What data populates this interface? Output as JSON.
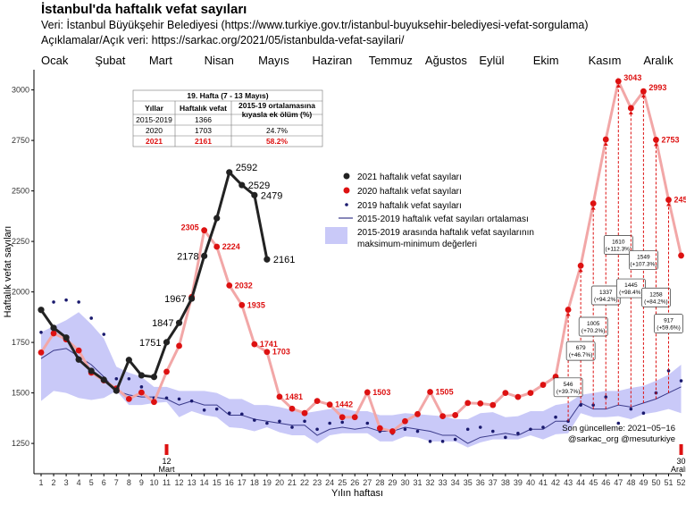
{
  "title": "İstanbul'da haftalık vefat sayıları",
  "subtitle1": "Veri: İstanbul Büyükşehir Belediyesi (https://www.turkiye.gov.tr/istanbul-buyuksehir-belediyesi-vefat-sorgulama)",
  "subtitle2": "Açıklamalar/Açık veri: https://sarkac.org/2021/05/istanbulda-vefat-sayilari/",
  "chart_data": {
    "type": "line",
    "xlabel": "Yılın haftası",
    "ylabel": "Haftalık vefat sayıları",
    "xlim": [
      1,
      52
    ],
    "ylim": [
      1100,
      3100
    ],
    "yticks": [
      1250,
      1500,
      1750,
      2000,
      2250,
      2500,
      2750,
      3000
    ],
    "months": [
      {
        "label": "Ocak",
        "week": 1
      },
      {
        "label": "Şubat",
        "week": 5.3
      },
      {
        "label": "Mart",
        "week": 9.6
      },
      {
        "label": "Nisan",
        "week": 14
      },
      {
        "label": "Mayıs",
        "week": 18.3
      },
      {
        "label": "Haziran",
        "week": 22.6
      },
      {
        "label": "Temmuz",
        "week": 27.1
      },
      {
        "label": "Ağustos",
        "week": 31.6
      },
      {
        "label": "Eylül",
        "week": 35.9
      },
      {
        "label": "Ekim",
        "week": 40.2
      },
      {
        "label": "Kasım",
        "week": 44.6
      },
      {
        "label": "Aralık",
        "week": 49
      }
    ],
    "band_min": [
      1460,
      1510,
      1500,
      1475,
      1465,
      1475,
      1510,
      1440,
      1440,
      1450,
      1455,
      1380,
      1410,
      1390,
      1380,
      1330,
      1325,
      1310,
      1330,
      1305,
      1290,
      1290,
      1250,
      1290,
      1300,
      1300,
      1300,
      1260,
      1260,
      1285,
      1280,
      1260,
      1260,
      1260,
      1230,
      1255,
      1270,
      1270,
      1270,
      1290,
      1270,
      1295,
      1300,
      1400,
      1380,
      1380,
      1385,
      1370,
      1395,
      1405,
      1420,
      1400
    ],
    "band_max": [
      1800,
      1830,
      1860,
      1900,
      1840,
      1770,
      1630,
      1600,
      1580,
      1530,
      1530,
      1510,
      1510,
      1510,
      1500,
      1470,
      1470,
      1440,
      1440,
      1430,
      1415,
      1400,
      1410,
      1420,
      1425,
      1410,
      1410,
      1390,
      1390,
      1400,
      1395,
      1390,
      1385,
      1370,
      1370,
      1400,
      1405,
      1380,
      1385,
      1410,
      1410,
      1440,
      1450,
      1490,
      1500,
      1510,
      1510,
      1525,
      1535,
      1560,
      1590,
      1640
    ],
    "avg_2015_2019": [
      1670,
      1710,
      1720,
      1680,
      1640,
      1580,
      1510,
      1490,
      1480,
      1480,
      1470,
      1440,
      1460,
      1440,
      1440,
      1390,
      1390,
      1370,
      1360,
      1350,
      1340,
      1340,
      1290,
      1320,
      1330,
      1320,
      1330,
      1310,
      1310,
      1330,
      1320,
      1310,
      1290,
      1290,
      1250,
      1280,
      1290,
      1300,
      1290,
      1320,
      1320,
      1360,
      1360,
      1450,
      1420,
      1420,
      1440,
      1430,
      1450,
      1470,
      1500,
      1530
    ],
    "series": [
      {
        "name": "2021 haftalık vefat sayıları",
        "weeks": [
          1,
          2,
          3,
          4,
          5,
          6,
          7,
          8,
          9,
          10,
          11,
          12,
          13,
          14,
          15,
          16,
          17,
          18,
          19
        ],
        "values": [
          1911,
          1822,
          1774,
          1665,
          1609,
          1565,
          1511,
          1663,
          1587,
          1579,
          1751,
          1847,
          1967,
          2178,
          2365,
          2592,
          2529,
          2479,
          2161
        ],
        "labels": {
          "11": "1751",
          "12": "1847",
          "13": "1967",
          "14": "2178",
          "16": "2592",
          "17": "2529",
          "18": "2479",
          "19": "2161"
        }
      },
      {
        "name": "2020 haftalık vefat sayıları",
        "weeks": [
          1,
          2,
          3,
          4,
          5,
          6,
          7,
          8,
          9,
          10,
          11,
          12,
          13,
          14,
          15,
          16,
          17,
          18,
          19,
          20,
          21,
          22,
          23,
          24,
          25,
          26,
          27,
          28,
          29,
          30,
          31,
          32,
          33,
          34,
          35,
          36,
          37,
          38,
          39,
          40,
          41,
          42,
          43,
          44,
          45,
          46,
          47,
          48,
          49,
          50,
          51,
          52
        ],
        "values": [
          1700,
          1795,
          1765,
          1710,
          1600,
          1562,
          1522,
          1470,
          1502,
          1455,
          1605,
          1733,
          1975,
          2305,
          2224,
          2032,
          1935,
          1741,
          1703,
          1481,
          1422,
          1400,
          1460,
          1442,
          1380,
          1380,
          1503,
          1325,
          1310,
          1360,
          1395,
          1505,
          1385,
          1390,
          1450,
          1448,
          1440,
          1500,
          1480,
          1500,
          1540,
          1580,
          1912,
          2130,
          2438,
          2755,
          3043,
          2910,
          2993,
          2753,
          2456,
          2180
        ],
        "labels": {
          "14": "2305",
          "15": "2224",
          "16": "2032",
          "17": "1935",
          "18": "1741",
          "19": "1703",
          "20": "1481",
          "24": "1442",
          "27": "1503",
          "32": "1505",
          "47": "3043",
          "49": "2993",
          "50": "2753",
          "51": "2456"
        }
      },
      {
        "name": "2019 haftalık vefat sayıları",
        "weeks": [
          1,
          2,
          3,
          4,
          5,
          6,
          7,
          8,
          9,
          10,
          11,
          12,
          13,
          14,
          15,
          16,
          17,
          18,
          19,
          20,
          21,
          22,
          23,
          24,
          25,
          26,
          27,
          28,
          29,
          30,
          31,
          32,
          33,
          34,
          35,
          36,
          37,
          38,
          39,
          40,
          41,
          42,
          43,
          44,
          45,
          46,
          47,
          48,
          49,
          50,
          51,
          52
        ],
        "values": [
          1800,
          1950,
          1960,
          1950,
          1870,
          1790,
          1570,
          1570,
          1530,
          1475,
          1475,
          1470,
          1460,
          1415,
          1420,
          1400,
          1395,
          1365,
          1350,
          1360,
          1330,
          1360,
          1320,
          1350,
          1355,
          1375,
          1350,
          1310,
          1300,
          1320,
          1310,
          1260,
          1260,
          1270,
          1320,
          1330,
          1310,
          1280,
          1300,
          1320,
          1330,
          1380,
          1360,
          1440,
          1440,
          1480,
          1350,
          1420,
          1400,
          1500,
          1610,
          1560
        ]
      },
      {
        "name": "2015-2019 haftalık vefat sayıları ortalaması"
      },
      {
        "name": "2015-2019 arasında haftalık vefat sayılarının maksimum-minimum değerleri"
      }
    ],
    "excess_annotations": [
      {
        "week": 43,
        "value": 546,
        "pct": "(+39.7%)",
        "box_y": 1530
      },
      {
        "week": 44,
        "value": 679,
        "pct": "(+46.7%)",
        "box_y": 1710
      },
      {
        "week": 45,
        "value": 1005,
        "pct": "(+70.2%)",
        "box_y": 1830
      },
      {
        "week": 46,
        "value": 1337,
        "pct": "(+94.2%)",
        "box_y": 1985
      },
      {
        "week": 47,
        "value": 1610,
        "pct": "(+112.3%)",
        "box_y": 2235
      },
      {
        "week": 48,
        "value": 1445,
        "pct": "(+98.4%)",
        "box_y": 2020
      },
      {
        "week": 49,
        "value": 1549,
        "pct": "(+107.3%)",
        "box_y": 2160
      },
      {
        "week": 50,
        "value": 1258,
        "pct": "(+84.2%)",
        "box_y": 1975
      },
      {
        "week": 51,
        "value": 917,
        "pct": "(+59.6%)",
        "box_y": 1845
      }
    ],
    "markers": [
      {
        "week": 11,
        "line1": "12",
        "line2": "Mart"
      },
      {
        "week": 52,
        "line1": "30",
        "line2": "Aralık"
      }
    ],
    "table": {
      "title": "19. Hafta (7 - 13 Mayıs)",
      "headers": [
        "Yıllar",
        "Haftalık vefat",
        "2015-19 ortalamasına",
        "kıyasla ek ölüm (%)"
      ],
      "rows": [
        [
          "2015-2019",
          "1366",
          ""
        ],
        [
          "2020",
          "1703",
          "24.7%"
        ],
        [
          "2021",
          "2161",
          "58.2%"
        ]
      ]
    },
    "update_note": "Son güncelleme: 2021−05−16",
    "credit": "@sarkac_org @mesuturkiye",
    "colors": {
      "s2021": "#222222",
      "s2020": "#dd1111",
      "s2020_line": "#f2a7a7",
      "s2019": "#1a1a6e",
      "avg": "#3a3a8a",
      "band": "#c9c9f8",
      "table_red": "#dd1111"
    }
  }
}
